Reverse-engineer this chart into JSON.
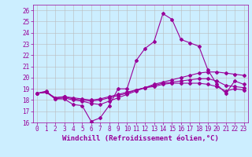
{
  "xlabel": "Windchill (Refroidissement éolien,°C)",
  "ylabel": "",
  "background_color": "#cceeff",
  "line_color": "#990099",
  "grid_color": "#bbbbbb",
  "xlim": [
    -0.5,
    23.5
  ],
  "ylim": [
    16,
    26.5
  ],
  "xticks": [
    0,
    1,
    2,
    3,
    4,
    5,
    6,
    7,
    8,
    9,
    10,
    11,
    12,
    13,
    14,
    15,
    16,
    17,
    18,
    19,
    20,
    21,
    22,
    23
  ],
  "yticks": [
    16,
    17,
    18,
    19,
    20,
    21,
    22,
    23,
    24,
    25,
    26
  ],
  "line1_x": [
    0,
    1,
    2,
    3,
    4,
    5,
    6,
    7,
    8,
    9,
    10,
    11,
    12,
    13,
    14,
    15,
    16,
    17,
    18,
    19,
    20,
    21,
    22,
    23
  ],
  "line1_y": [
    18.6,
    18.8,
    18.1,
    18.1,
    17.6,
    17.5,
    16.1,
    16.4,
    17.5,
    19.0,
    19.0,
    21.5,
    22.6,
    23.2,
    25.7,
    25.2,
    23.4,
    23.1,
    22.8,
    20.7,
    19.4,
    18.6,
    19.7,
    19.4
  ],
  "line2_x": [
    0,
    1,
    2,
    3,
    4,
    5,
    6,
    7,
    8,
    9,
    10,
    11,
    12,
    13,
    14,
    15,
    16,
    17,
    18,
    19,
    20,
    21,
    22,
    23
  ],
  "line2_y": [
    18.6,
    18.7,
    18.1,
    18.2,
    18.0,
    17.9,
    17.7,
    17.6,
    17.9,
    18.2,
    18.5,
    18.8,
    19.1,
    19.4,
    19.6,
    19.8,
    20.0,
    20.2,
    20.4,
    20.5,
    20.5,
    20.4,
    20.3,
    20.2
  ],
  "line3_x": [
    0,
    1,
    2,
    3,
    4,
    5,
    6,
    7,
    8,
    9,
    10,
    11,
    12,
    13,
    14,
    15,
    16,
    17,
    18,
    19,
    20,
    21,
    22,
    23
  ],
  "line3_y": [
    18.6,
    18.7,
    18.2,
    18.3,
    18.1,
    18.0,
    17.9,
    18.0,
    18.2,
    18.4,
    18.6,
    18.9,
    19.1,
    19.3,
    19.5,
    19.6,
    19.7,
    19.8,
    19.9,
    19.9,
    19.7,
    19.3,
    19.2,
    19.1
  ],
  "line4_x": [
    0,
    1,
    2,
    3,
    4,
    5,
    6,
    7,
    8,
    9,
    10,
    11,
    12,
    13,
    14,
    15,
    16,
    17,
    18,
    19,
    20,
    21,
    22,
    23
  ],
  "line4_y": [
    18.6,
    18.7,
    18.2,
    18.3,
    18.2,
    18.1,
    18.0,
    18.1,
    18.3,
    18.5,
    18.7,
    18.9,
    19.1,
    19.2,
    19.4,
    19.5,
    19.5,
    19.5,
    19.5,
    19.4,
    19.2,
    18.8,
    19.0,
    18.9
  ],
  "marker_size": 2,
  "line_width": 0.8,
  "tick_fontsize": 5.5,
  "label_fontsize": 6.5
}
